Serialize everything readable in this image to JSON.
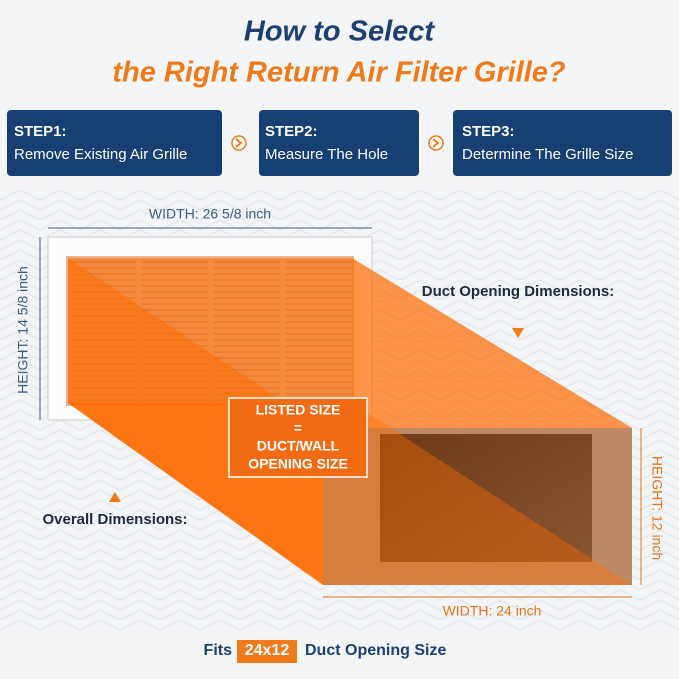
{
  "header": {
    "title_line1": "How to Select",
    "title_line2": "the Right Return Air Filter Grille?"
  },
  "steps": [
    {
      "label": "STEP1:",
      "text": "Remove Existing Air Grille"
    },
    {
      "label": "STEP2:",
      "text": "Measure The Hole"
    },
    {
      "label": "STEP3:",
      "text": "Determine The Grille Size"
    }
  ],
  "grille": {
    "width_label": "WIDTH: 26 5/8 inch",
    "height_label": "HEIGHT: 14 5/8 inch",
    "caption": "Overall Dimensions:"
  },
  "duct": {
    "caption": "Duct Opening Dimensions:",
    "width_label": "WIDTH: 24 inch",
    "height_label": "HEIGHT: 12 inch"
  },
  "listed_size": {
    "line1": "LISTED SIZE",
    "line2": "=",
    "line3": "DUCT/WALL",
    "line4": "OPENING SIZE"
  },
  "footer": {
    "prefix": "Fits",
    "size": "24x12",
    "suffix": "Duct Opening Size"
  }
}
